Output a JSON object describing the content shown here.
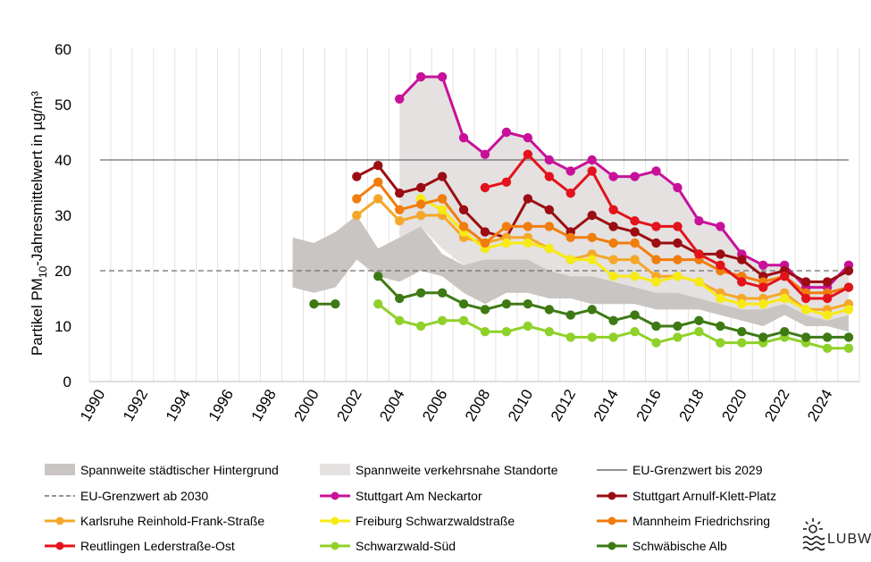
{
  "chart_data": {
    "type": "line",
    "ylabel_main": "Partikel PM",
    "ylabel_sub": "10",
    "ylabel_rest": "-Jahresmittelwert  in µg/m³",
    "ylim": [
      0,
      60
    ],
    "yticks": [
      "0",
      "10",
      "20",
      "30",
      "40",
      "50",
      "60"
    ],
    "xlim": [
      1990,
      2025
    ],
    "xticks": [
      "1990",
      "1992",
      "1994",
      "1996",
      "1998",
      "2000",
      "2002",
      "2004",
      "2006",
      "2008",
      "2010",
      "2012",
      "2014",
      "2016",
      "2018",
      "2020",
      "2022",
      "2024"
    ],
    "grid": "vertical",
    "ranges": [
      {
        "name": "Spannweite städtischer Hintergrund",
        "color": "#c9c5c3",
        "x": [
          1999,
          2000,
          2001,
          2002,
          2003,
          2004,
          2005,
          2006,
          2007,
          2008,
          2009,
          2010,
          2011,
          2012,
          2013,
          2014,
          2015,
          2016,
          2017,
          2018,
          2019,
          2020,
          2021,
          2022,
          2023,
          2024,
          2025
        ],
        "low": [
          17,
          16,
          17,
          22,
          19,
          18,
          20,
          19,
          16,
          14,
          16,
          16,
          15,
          15,
          14,
          14,
          14,
          13,
          13,
          13,
          12,
          11,
          10,
          12,
          10,
          10,
          9
        ],
        "high": [
          26,
          25,
          27,
          30,
          24,
          26,
          28,
          23,
          21,
          23,
          24,
          24,
          23,
          19,
          21,
          19,
          19,
          20,
          19,
          19,
          17,
          16,
          17,
          18,
          17,
          15,
          15
        ]
      },
      {
        "name": "Spannweite verkehrsnahe Standorte",
        "color": "#e4e1e0",
        "x": [
          2004,
          2005,
          2006,
          2007,
          2008,
          2009,
          2010,
          2011,
          2012,
          2013,
          2014,
          2015,
          2016,
          2017,
          2018,
          2019,
          2020,
          2021,
          2022,
          2023,
          2024,
          2025
        ],
        "low": [
          26,
          28,
          24,
          21,
          22,
          22,
          22,
          20,
          19,
          19,
          18,
          17,
          16,
          16,
          15,
          14,
          13,
          13,
          14,
          12,
          11,
          12
        ],
        "high": [
          51,
          55,
          55,
          44,
          41,
          45,
          44,
          40,
          38,
          40,
          37,
          37,
          38,
          35,
          29,
          28,
          23,
          21,
          21,
          18,
          18,
          21
        ]
      }
    ],
    "reference_lines": [
      {
        "name": "EU-Grenzwert bis 2029",
        "value": 40,
        "color": "#6e6e6e",
        "style": "solid"
      },
      {
        "name": "EU-Grenzwert ab 2030",
        "value": 20,
        "color": "#6e6e6e",
        "style": "dashed"
      }
    ],
    "series": [
      {
        "name": "Stuttgart Am Neckartor",
        "color": "#c8119a",
        "x": [
          2004,
          2005,
          2006,
          2007,
          2008,
          2009,
          2010,
          2011,
          2012,
          2013,
          2014,
          2015,
          2016,
          2017,
          2018,
          2019,
          2020,
          2021,
          2022,
          2023,
          2024,
          2025
        ],
        "values": [
          51,
          55,
          55,
          44,
          41,
          45,
          44,
          40,
          38,
          40,
          37,
          37,
          38,
          35,
          29,
          28,
          23,
          21,
          21,
          17,
          17,
          21
        ]
      },
      {
        "name": "Stuttgart Arnulf-Klett-Platz",
        "color": "#9b0d12",
        "x": [
          2002,
          2003,
          2004,
          2005,
          2006,
          2007,
          2008,
          2009,
          2010,
          2011,
          2012,
          2013,
          2014,
          2015,
          2016,
          2017,
          2018,
          2019,
          2020,
          2021,
          2022,
          2023,
          2024,
          2025
        ],
        "values": [
          37,
          39,
          34,
          35,
          37,
          31,
          27,
          26,
          33,
          31,
          27,
          30,
          28,
          27,
          25,
          25,
          23,
          23,
          22,
          19,
          20,
          18,
          18,
          20
        ]
      },
      {
        "name": "Karlsruhe Reinhold-Frank-Straße",
        "color": "#f5a72a",
        "x": [
          2002,
          2003,
          2004,
          2005,
          2006,
          2007,
          2008,
          2009,
          2010,
          2011,
          2012,
          2013,
          2014,
          2015,
          2016,
          2017,
          2018,
          2019,
          2020,
          2021,
          2022,
          2023,
          2024,
          2025
        ],
        "values": [
          30,
          33,
          29,
          30,
          30,
          26,
          25,
          26,
          26,
          24,
          22,
          23,
          22,
          22,
          19,
          19,
          18,
          16,
          15,
          15,
          16,
          13,
          13,
          14
        ]
      },
      {
        "name": "Freiburg Schwarzwaldstraße",
        "color": "#f6eb14",
        "x": [
          2005,
          2006,
          2007,
          2008,
          2009,
          2010,
          2011,
          2012,
          2013,
          2014,
          2015,
          2016,
          2017,
          2018,
          2019,
          2020,
          2021,
          2022,
          2023,
          2024,
          2025
        ],
        "values": [
          33,
          31,
          27,
          24,
          25,
          25,
          24,
          22,
          22,
          19,
          19,
          18,
          19,
          18,
          15,
          14,
          14,
          15,
          13,
          12,
          13
        ]
      },
      {
        "name": "Mannheim Friedrichsring",
        "color": "#f07d0e",
        "x": [
          2002,
          2003,
          2004,
          2005,
          2006,
          2007,
          2008,
          2009,
          2010,
          2011,
          2012,
          2013,
          2014,
          2015,
          2016,
          2017,
          2018,
          2019,
          2020,
          2021,
          2022,
          2023,
          2024,
          2025
        ],
        "values": [
          33,
          36,
          31,
          32,
          33,
          28,
          25,
          28,
          28,
          28,
          26,
          26,
          25,
          25,
          22,
          22,
          22,
          20,
          19,
          18,
          19,
          16,
          16,
          17
        ]
      },
      {
        "name": "Reutlingen Lederstraße-Ost",
        "color": "#e3121c",
        "x": [
          2008,
          2009,
          2010,
          2011,
          2012,
          2013,
          2014,
          2015,
          2016,
          2017,
          2018,
          2019,
          2020,
          2021,
          2022,
          2023,
          2024,
          2025
        ],
        "values": [
          35,
          36,
          41,
          37,
          34,
          38,
          31,
          29,
          28,
          28,
          23,
          21,
          18,
          17,
          19,
          15,
          15,
          17
        ]
      },
      {
        "name": "Schwarzwald-Süd",
        "color": "#8fd12a",
        "x": [
          2003,
          2004,
          2005,
          2006,
          2007,
          2008,
          2009,
          2010,
          2011,
          2012,
          2013,
          2014,
          2015,
          2016,
          2017,
          2018,
          2019,
          2020,
          2021,
          2022,
          2023,
          2024,
          2025
        ],
        "values": [
          14,
          11,
          10,
          11,
          11,
          9,
          9,
          10,
          9,
          8,
          8,
          8,
          9,
          7,
          8,
          9,
          7,
          7,
          7,
          8,
          7,
          6,
          6
        ]
      },
      {
        "name": "Schwäbische Alb",
        "color": "#3d7a14",
        "x": [
          2000,
          2001,
          null,
          2003,
          2004,
          2005,
          2006,
          2007,
          2008,
          2009,
          2010,
          2011,
          2012,
          2013,
          2014,
          2015,
          2016,
          2017,
          2018,
          2019,
          2020,
          2021,
          2022,
          2023,
          2024,
          2025
        ],
        "values": [
          14,
          14,
          null,
          19,
          15,
          16,
          16,
          14,
          13,
          14,
          14,
          13,
          12,
          13,
          11,
          12,
          10,
          10,
          11,
          10,
          9,
          8,
          9,
          8,
          8,
          8
        ]
      }
    ],
    "legend": {
      "placement": "bottom",
      "items": [
        {
          "label": "Spannweite städtischer Hintergrund",
          "kind": "band",
          "color": "#c9c5c3"
        },
        {
          "label": "Spannweite verkehrsnahe Standorte",
          "kind": "band",
          "color": "#e4e1e0"
        },
        {
          "label": "EU-Grenzwert bis 2029",
          "kind": "solid",
          "color": "#6e6e6e"
        },
        {
          "label": "EU-Grenzwert ab 2030",
          "kind": "dashed",
          "color": "#6e6e6e"
        },
        {
          "label": "Stuttgart Am Neckartor",
          "kind": "marker",
          "color": "#c8119a"
        },
        {
          "label": "Stuttgart Arnulf-Klett-Platz",
          "kind": "marker",
          "color": "#9b0d12"
        },
        {
          "label": "Karlsruhe Reinhold-Frank-Straße",
          "kind": "marker",
          "color": "#f5a72a"
        },
        {
          "label": "Freiburg Schwarzwaldstraße",
          "kind": "marker",
          "color": "#f6eb14"
        },
        {
          "label": "Mannheim Friedrichsring",
          "kind": "marker",
          "color": "#f07d0e"
        },
        {
          "label": "Reutlingen Lederstraße-Ost",
          "kind": "marker",
          "color": "#e3121c"
        },
        {
          "label": "Schwarzwald-Süd",
          "kind": "marker",
          "color": "#8fd12a"
        },
        {
          "label": "Schwäbische Alb",
          "kind": "marker",
          "color": "#3d7a14"
        }
      ]
    }
  },
  "logo": {
    "text": "LUBW",
    "icon": "sun-wave-logo-icon"
  }
}
